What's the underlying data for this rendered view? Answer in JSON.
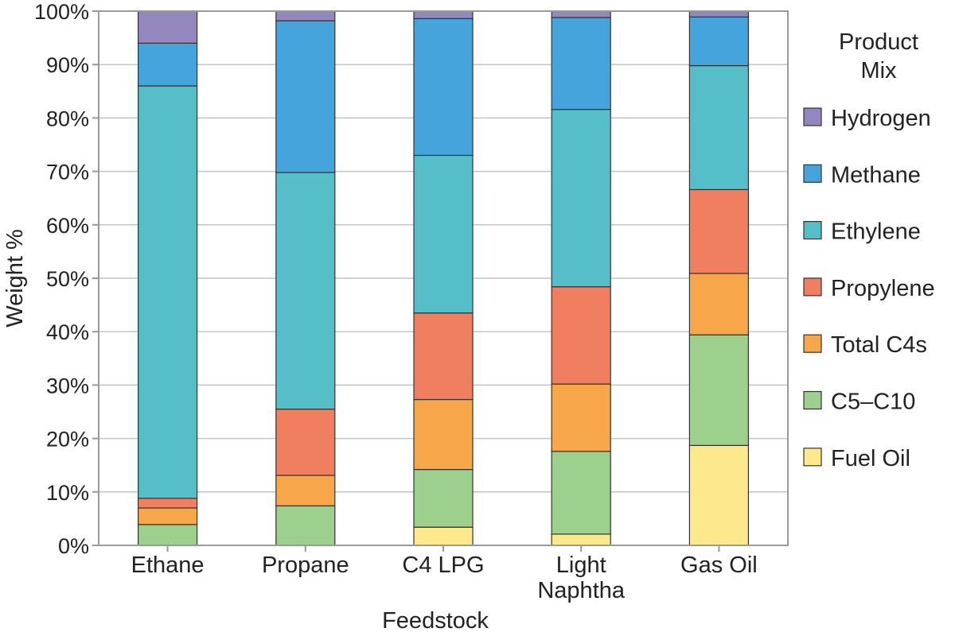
{
  "chart_data": {
    "type": "bar",
    "stacked": true,
    "xlabel": "Feedstock",
    "ylabel": "Weight %",
    "ylim": [
      0,
      100
    ],
    "yticks": [
      0,
      10,
      20,
      30,
      40,
      50,
      60,
      70,
      80,
      90,
      100
    ],
    "ytick_format": "{v}%",
    "grid": true,
    "legend_title": [
      "Product",
      "Mix"
    ],
    "legend_position": "right",
    "categories": [
      [
        "Ethane"
      ],
      [
        "Propane"
      ],
      [
        "C4 LPG"
      ],
      [
        "Light",
        "Naphtha"
      ],
      [
        "Gas Oil"
      ]
    ],
    "series": [
      {
        "name": "Fuel Oil",
        "color": "#fde98c",
        "values": [
          0,
          0,
          3.4,
          2.1,
          18.7
        ]
      },
      {
        "name": "C5–C10",
        "color": "#9dd08c",
        "values": [
          3.9,
          7.4,
          10.8,
          15.5,
          20.7
        ]
      },
      {
        "name": "Total C4s",
        "color": "#f7a64a",
        "values": [
          3.1,
          5.7,
          13.1,
          12.6,
          11.5
        ]
      },
      {
        "name": "Propylene",
        "color": "#f07f60",
        "values": [
          1.8,
          12.4,
          16.2,
          18.2,
          15.7
        ]
      },
      {
        "name": "Ethylene",
        "color": "#55bec8",
        "values": [
          77.2,
          44.3,
          29.5,
          33.2,
          23.2
        ]
      },
      {
        "name": "Methane",
        "color": "#45a4db",
        "values": [
          8.0,
          28.4,
          25.6,
          17.2,
          9.1
        ]
      },
      {
        "name": "Hydrogen",
        "color": "#9487be",
        "values": [
          6.0,
          1.8,
          1.4,
          1.2,
          1.1
        ]
      }
    ],
    "legend_order": [
      "Hydrogen",
      "Methane",
      "Ethylene",
      "Propylene",
      "Total C4s",
      "C5–C10",
      "Fuel Oil"
    ]
  }
}
